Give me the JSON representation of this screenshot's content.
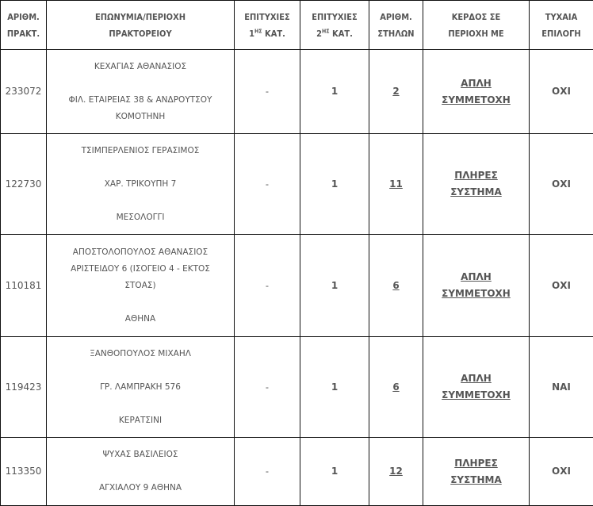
{
  "headers": {
    "agency_no": [
      "ΑΡΙΘΜ.",
      "ΠΡΑΚΤ."
    ],
    "name": [
      "ΕΠΩΝΥΜΙΑ/ΠΕΡΙΟΧΗ",
      "ΠΡΑΚΤΟΡΕΙΟΥ"
    ],
    "wins1": {
      "title": "ΕΠΙΤΥΧΙΕΣ",
      "num": "1",
      "sup": "ΗΣ",
      "suffix": " ΚΑΤ."
    },
    "wins2": {
      "title": "ΕΠΙΤΥΧΙΕΣ",
      "num": "2",
      "sup": "ΗΣ",
      "suffix": " ΚΑΤ."
    },
    "columns": [
      "ΑΡΙΘΜ.",
      "ΣΤΗΛΩΝ"
    ],
    "win_type": [
      "ΚΕΡΔΟΣ ΣΕ",
      "ΠΕΡΙΟΧΗ ΜΕ"
    ],
    "random": [
      "ΤΥΧΑΙΑ",
      "ΕΠΙΛΟΓΗ"
    ]
  },
  "rows": [
    {
      "code": "233072",
      "lines": [
        "ΚΕΧΑΓΙΑΣ ΑΘΑΝΑΣΙΟΣ",
        "",
        "ΦΙΛ. ΕΤΑΙΡΕΙΑΣ 38 & ΑΝΔΡΟΥΤΣΟΥ",
        "ΚΟΜΟΤΗΝΗ"
      ],
      "wins1": "-",
      "wins2": "1",
      "columns": "2",
      "win_type": [
        "ΑΠΛΗ",
        "ΣΥΜΜΕΤΟΧΗ"
      ],
      "random": "ΟΧΙ"
    },
    {
      "code": "122730",
      "lines": [
        "ΤΣΙΜΠΕΡΛΕΝΙΟΣ ΓΕΡΑΣΙΜΟΣ",
        "",
        "ΧΑΡ. ΤΡΙΚΟΥΠΗ 7",
        "",
        "ΜΕΣΟΛΟΓΓΙ"
      ],
      "wins1": "-",
      "wins2": "1",
      "columns": "11",
      "win_type": [
        "ΠΛΗΡΕΣ",
        "ΣΥΣΤΗΜΑ"
      ],
      "random": "ΟΧΙ"
    },
    {
      "code": "110181",
      "lines": [
        "ΑΠΟΣΤΟΛΟΠΟΥΛΟΣ ΑΘΑΝΑΣΙΟΣ",
        "ΑΡΙΣΤΕΙΔΟΥ 6 (ΙΣΟΓΕΙΟ 4 - ΕΚΤΟΣ",
        "ΣΤΟΑΣ)",
        "",
        "ΑΘΗΝΑ"
      ],
      "wins1": "-",
      "wins2": "1",
      "columns": "6",
      "win_type": [
        "ΑΠΛΗ",
        "ΣΥΜΜΕΤΟΧΗ"
      ],
      "random": "ΟΧΙ"
    },
    {
      "code": "119423",
      "lines": [
        "ΞΑΝΘΟΠΟΥΛΟΣ ΜΙΧΑΗΛ",
        "",
        "ΓΡ. ΛΑΜΠΡΑΚΗ 576",
        "",
        "ΚΕΡΑΤΣΙΝΙ"
      ],
      "wins1": "-",
      "wins2": "1",
      "columns": "6",
      "win_type": [
        "ΑΠΛΗ",
        "ΣΥΜΜΕΤΟΧΗ"
      ],
      "random": "ΝΑΙ"
    },
    {
      "code": "113350",
      "lines": [
        "ΨΥΧΑΣ ΒΑΣΙΛΕΙΟΣ",
        "",
        "ΑΓΧΙΑΛΟΥ 9 ΑΘΗΝΑ"
      ],
      "wins1": "-",
      "wins2": "1",
      "columns": "12",
      "win_type": [
        "ΠΛΗΡΕΣ",
        "ΣΥΣΤΗΜΑ"
      ],
      "random": "ΟΧΙ"
    }
  ]
}
